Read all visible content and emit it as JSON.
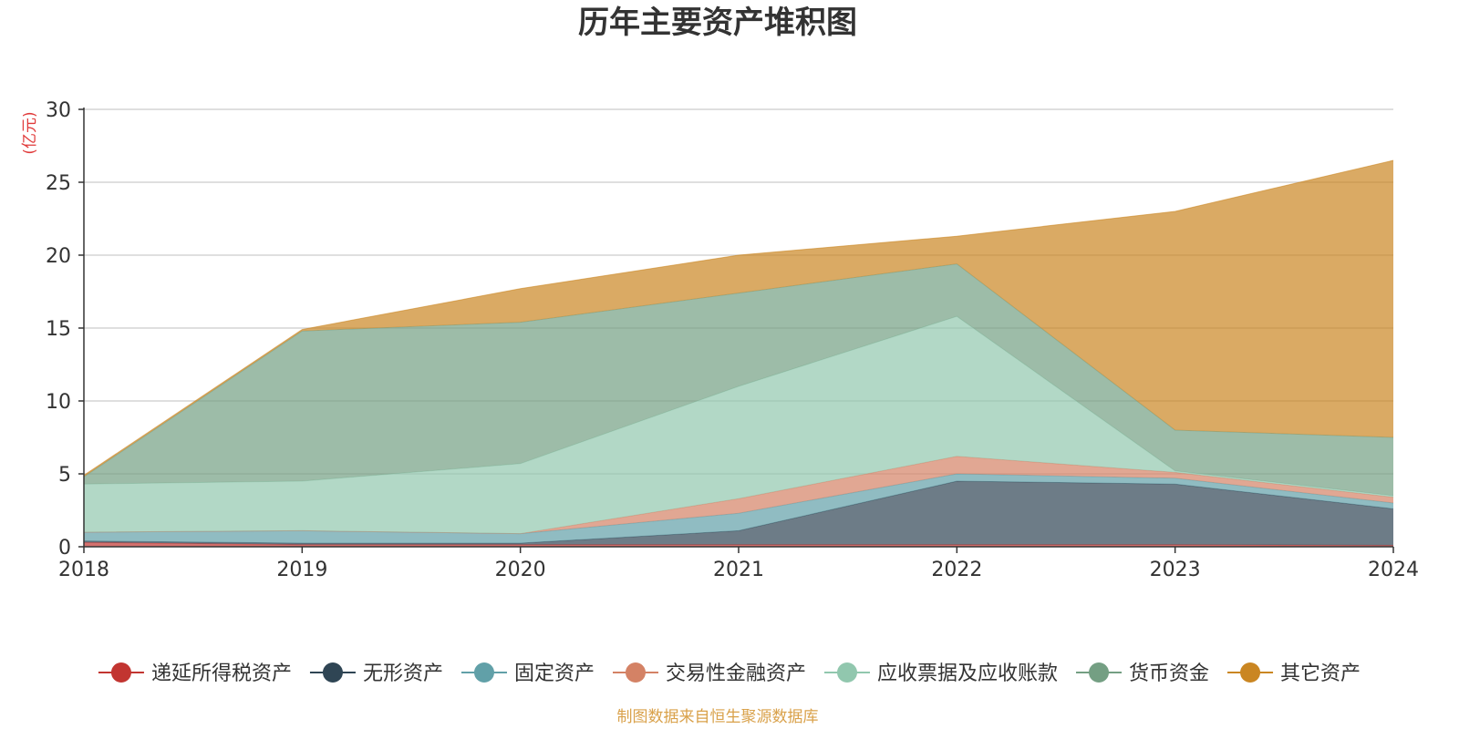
{
  "chart_data": {
    "type": "area",
    "stacked": true,
    "title": "历年主要资产堆积图",
    "unit_label": "(亿元)",
    "source": "制图数据来自恒生聚源数据库",
    "x": [
      "2018",
      "2019",
      "2020",
      "2021",
      "2022",
      "2023",
      "2024"
    ],
    "ylim": [
      0,
      30
    ],
    "yticks": [
      "0",
      "5",
      "10",
      "15",
      "20",
      "25",
      "30"
    ],
    "grid": true,
    "legend_position": "bottom",
    "series": [
      {
        "name": "递延所得税资产",
        "color": "#c23531",
        "values": [
          0.3,
          0.15,
          0.15,
          0.15,
          0.15,
          0.15,
          0.1
        ]
      },
      {
        "name": "无形资产",
        "color": "#2f4554",
        "values": [
          0.1,
          0.1,
          0.1,
          0.95,
          4.35,
          4.15,
          2.5
        ]
      },
      {
        "name": "固定资产",
        "color": "#61a0a8",
        "values": [
          0.6,
          0.85,
          0.65,
          1.2,
          0.5,
          0.4,
          0.4
        ]
      },
      {
        "name": "交易性金融资产",
        "color": "#d48265",
        "values": [
          0.0,
          0.0,
          0.0,
          1.0,
          1.2,
          0.4,
          0.4
        ]
      },
      {
        "name": "应收票据及应收账款",
        "color": "#91c7ae",
        "values": [
          3.3,
          3.4,
          4.8,
          7.7,
          9.6,
          0.1,
          0.1
        ]
      },
      {
        "name": "货币资金",
        "color": "#749f83",
        "values": [
          0.5,
          10.3,
          9.7,
          6.4,
          3.6,
          2.8,
          4.0
        ]
      },
      {
        "name": "其它资产",
        "color": "#ca8622",
        "values": [
          0.1,
          0.1,
          2.3,
          2.6,
          1.9,
          15.0,
          19.0
        ]
      }
    ]
  }
}
